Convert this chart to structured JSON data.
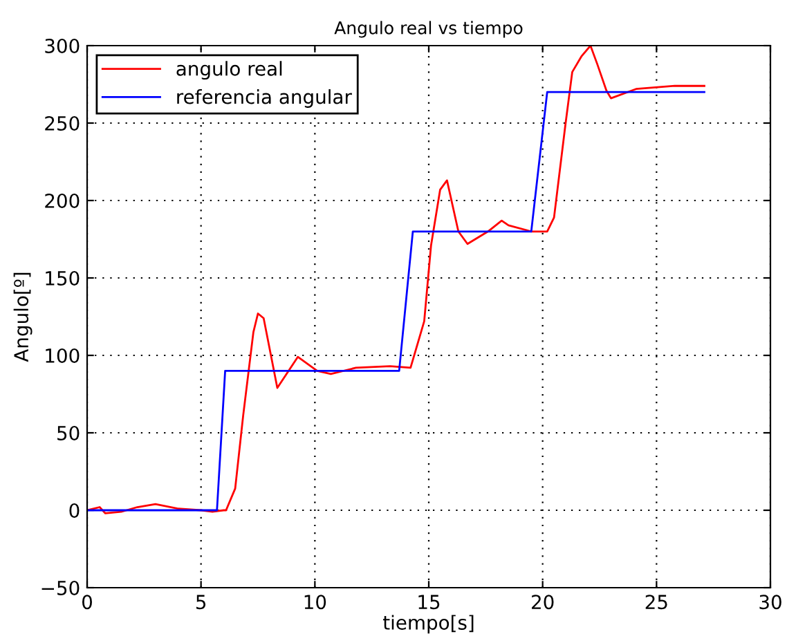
{
  "chart_data": {
    "type": "line",
    "title": "Angulo real vs tiempo",
    "xlabel": "tiempo[s]",
    "ylabel": "Angulo[º]",
    "xlim": [
      0,
      30
    ],
    "ylim": [
      -50,
      300
    ],
    "xticks": [
      0,
      5,
      10,
      15,
      20,
      25,
      30
    ],
    "yticks": [
      -50,
      0,
      50,
      100,
      150,
      200,
      250,
      300
    ],
    "grid": true,
    "legend": "top left",
    "line_style": "solid",
    "marker": "none",
    "series": [
      {
        "name": "angulo real",
        "color": "#ff0000",
        "x": [
          0,
          0.55,
          0.8,
          1.5,
          2.2,
          3,
          4,
          5,
          5.5,
          6,
          6.1,
          6.5,
          6.85,
          7.3,
          7.5,
          7.75,
          8.35,
          9.25,
          10.1,
          10.7,
          11.8,
          13.3,
          14.2,
          14.8,
          15.1,
          15.5,
          15.8,
          16.3,
          16.7,
          17.6,
          18.2,
          18.5,
          19.5,
          20.2,
          20.5,
          21.0,
          21.3,
          21.7,
          22.1,
          22.4,
          22.8,
          23.0,
          24.1,
          25.8,
          27.1
        ],
        "values": [
          0,
          2,
          -2,
          -1,
          2,
          4,
          1,
          0,
          -1,
          0,
          0,
          14,
          61,
          115,
          127,
          124,
          79,
          99,
          90,
          88,
          92,
          93,
          92,
          122,
          171,
          207,
          213,
          180,
          172,
          180,
          187,
          184,
          180,
          180,
          189,
          249,
          283,
          293,
          300,
          288,
          271,
          266,
          272,
          274,
          274
        ]
      },
      {
        "name": "referencia angular",
        "color": "#0000ff",
        "x": [
          0,
          5.7,
          6.06,
          13.7,
          14.3,
          19.5,
          20.2,
          27.1
        ],
        "values": [
          0,
          0,
          90,
          90,
          180,
          180,
          270,
          270
        ]
      }
    ]
  }
}
